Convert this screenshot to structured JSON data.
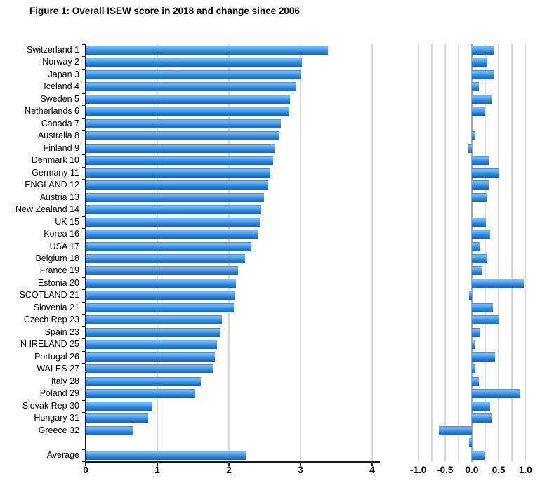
{
  "figure": {
    "title": "Figure 1: Overall ISEW score in 2018 and change since 2006"
  },
  "chart_data": {
    "type": "bar",
    "orientation": "horizontal",
    "title": "Figure 1: Overall ISEW score in 2018 and change since 2006",
    "categories": [
      "Switzerland 1",
      "Norway 2",
      "Japan 3",
      "Iceland 4",
      "Sweden 5",
      "Netherlands 6",
      "Canada 7",
      "Australia 8",
      "Finland 9",
      "Denmark 10",
      "Germany 11",
      "ENGLAND 12",
      "Austria 13",
      "New Zealand 14",
      "UK 15",
      "Korea 16",
      "USA 17",
      "Belgium 18",
      "France 19",
      "Estonia 20",
      "SCOTLAND 21",
      "Slovenia 21",
      "Czech Rep 23",
      "Spain 23",
      "N IRELAND 25",
      "Portugal 26",
      "WALES 27",
      "Italy 28",
      "Poland 29",
      "Slovak Rep 30",
      "Hungary 31",
      "Greece 32",
      "",
      "Average"
    ],
    "series": [
      {
        "name": "Overall ISEW score in 2018",
        "axis": "left",
        "values": [
          3.38,
          3.02,
          3.0,
          2.94,
          2.85,
          2.83,
          2.73,
          2.71,
          2.64,
          2.62,
          2.58,
          2.55,
          2.49,
          2.44,
          2.43,
          2.4,
          2.31,
          2.23,
          2.13,
          2.1,
          2.09,
          2.07,
          1.9,
          1.88,
          1.83,
          1.8,
          1.77,
          1.61,
          1.52,
          0.93,
          0.87,
          0.67,
          null,
          2.24
        ]
      },
      {
        "name": "Change since 2006",
        "axis": "right",
        "values": [
          0.4,
          0.28,
          0.42,
          0.13,
          0.37,
          0.23,
          0.0,
          0.05,
          -0.07,
          0.31,
          0.5,
          0.32,
          0.28,
          0.0,
          0.26,
          0.34,
          0.15,
          0.28,
          0.2,
          0.97,
          -0.05,
          0.39,
          0.5,
          0.15,
          0.05,
          0.43,
          0.07,
          0.13,
          0.89,
          0.34,
          0.36,
          -0.61,
          -0.05,
          0.24
        ]
      }
    ],
    "left_axis": {
      "range": [
        0,
        4
      ],
      "ticks": [
        0,
        1,
        2,
        3,
        4
      ],
      "tick_labels": [
        "0",
        "1",
        "2",
        "3",
        "4"
      ],
      "gridlines": [
        1,
        2,
        3,
        4
      ]
    },
    "right_axis": {
      "range": [
        -1,
        1
      ],
      "ticks": [
        -1,
        -0.5,
        0,
        0.5,
        1
      ],
      "tick_labels": [
        "-1.0",
        "-0.5",
        "0.0",
        "0.5",
        "1.0"
      ],
      "grid_step": 0.25
    },
    "legend": "none",
    "grid": "vertical",
    "colors": {
      "bar_main": "#2e86de",
      "bar_highlight": "#7fbcf5",
      "bar_shadow": "#1a62ba",
      "gridline": "#d9d9d9",
      "zero_line_right": "#a8a8a8",
      "axis": "#1a1a1a",
      "text": "#000000"
    }
  }
}
